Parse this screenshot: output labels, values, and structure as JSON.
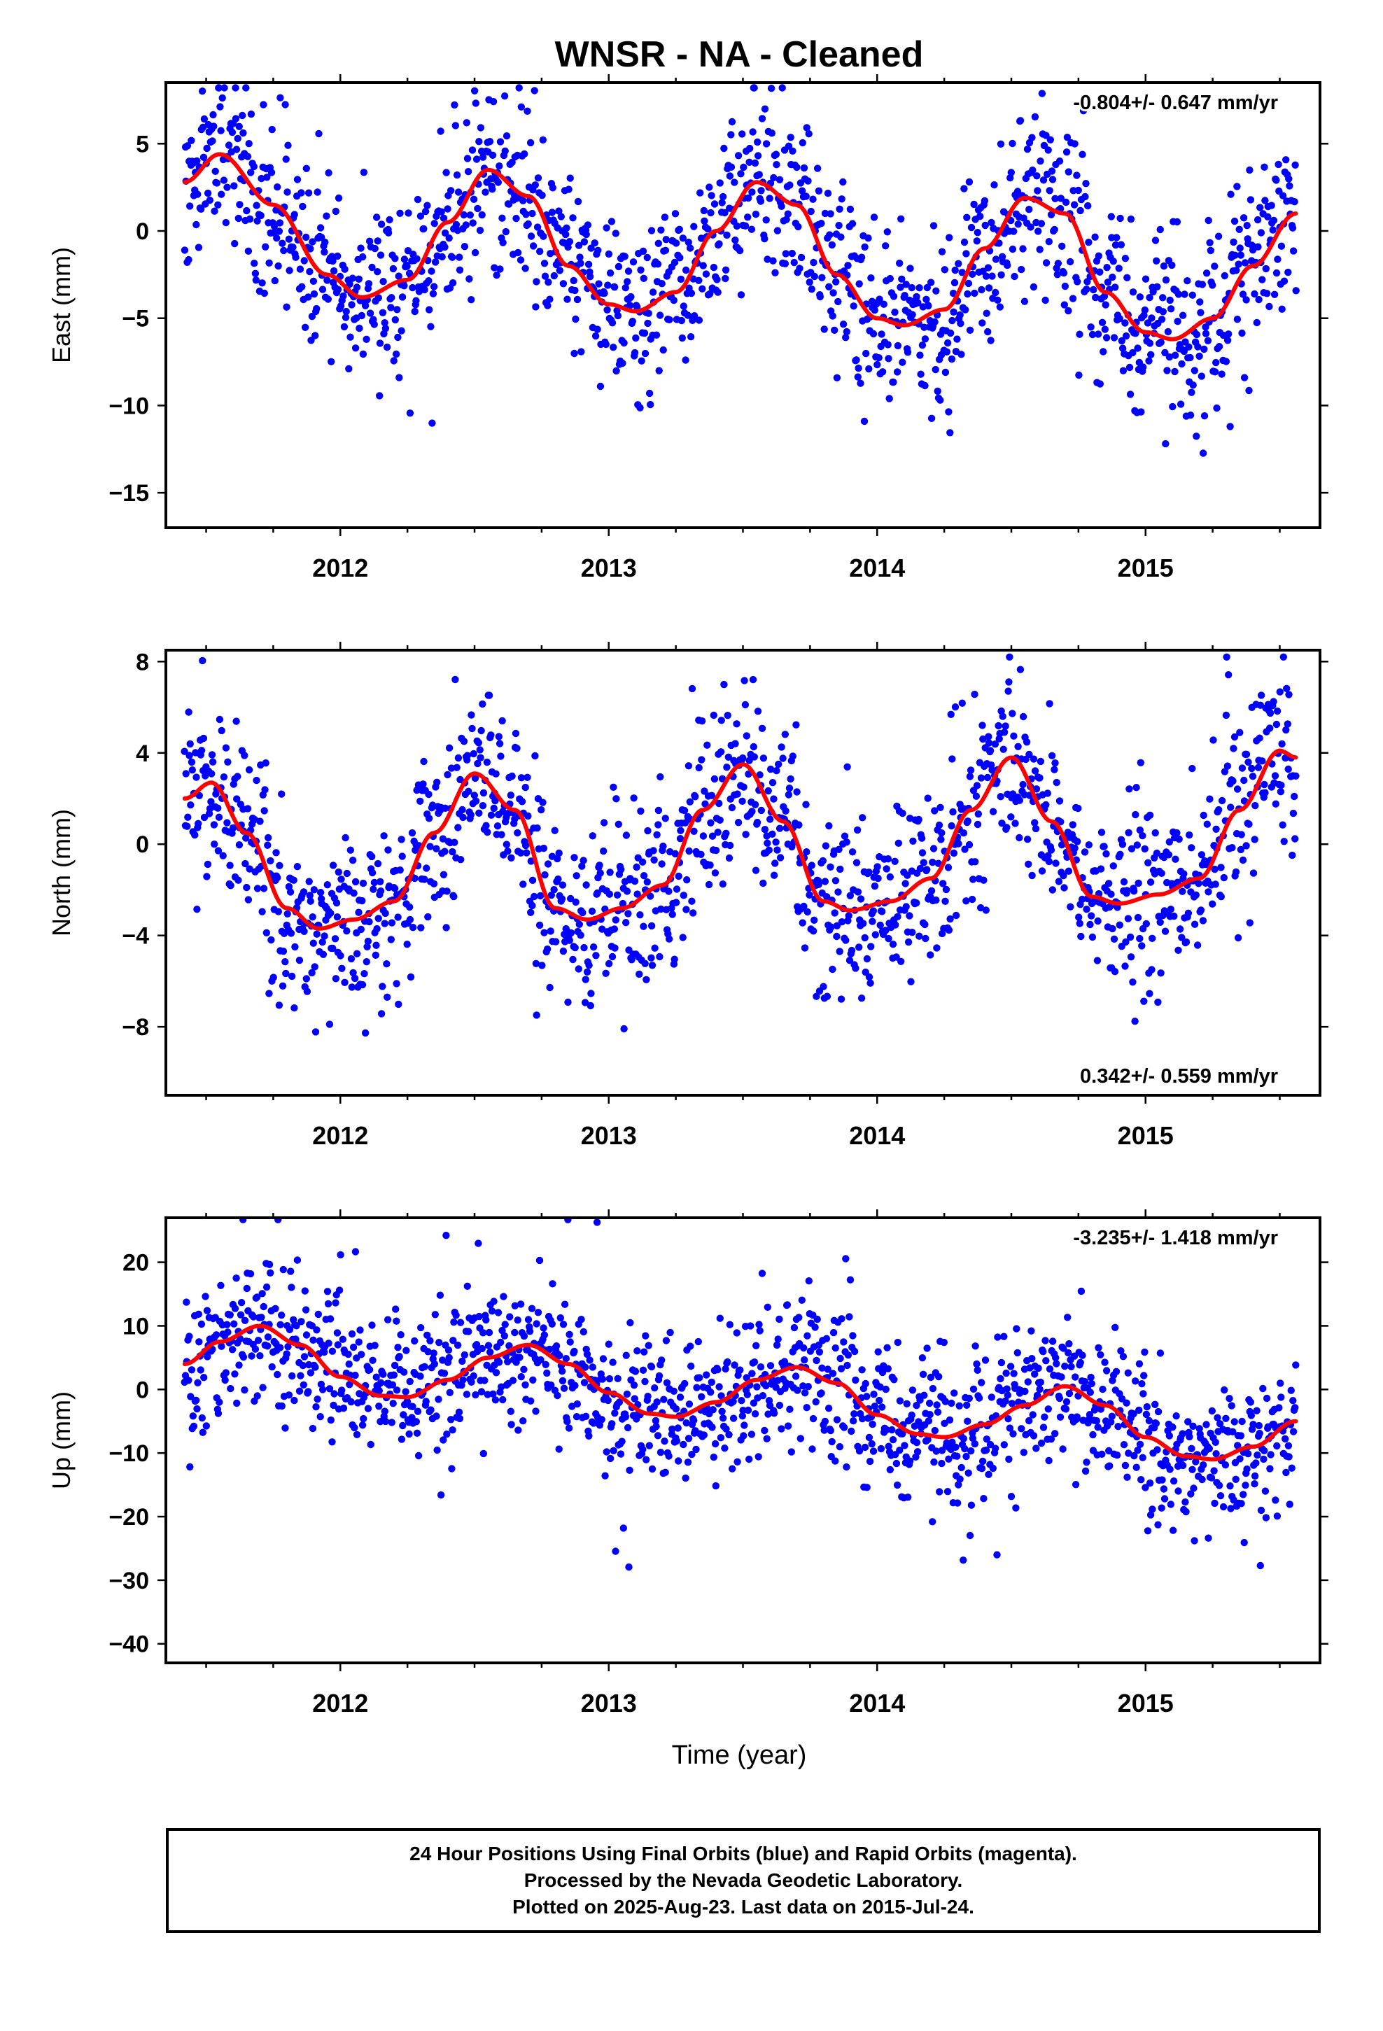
{
  "title": "WNSR  - NA - Cleaned",
  "footer": {
    "line1": "24 Hour Positions Using Final Orbits (blue) and Rapid Orbits (magenta).",
    "line2": "Processed by the Nevada Geodetic Laboratory.",
    "line3": "Plotted on 2025-Aug-23. Last data on 2015-Jul-24."
  },
  "colors": {
    "points": "#0000ff",
    "fit": "#ff0000",
    "frame": "#000000"
  },
  "chart_data": [
    {
      "type": "scatter",
      "ylabel": "East (mm)",
      "xlabel": "",
      "rate_label": "-0.804+/- 0.647 mm/yr",
      "rate_position": "top-right",
      "xlim": [
        2011.35,
        2015.65
      ],
      "ylim": [
        -17,
        8.5
      ],
      "xticks": [
        2012,
        2013,
        2014,
        2015
      ],
      "yticks": [
        5,
        0,
        -5,
        -10,
        -15
      ],
      "ytick_labels": [
        "5",
        "0",
        "−5",
        "−10",
        "−15"
      ],
      "x_start": 2011.42,
      "x_end": 2015.56,
      "fit": {
        "x": [
          2011.42,
          2011.55,
          2011.75,
          2011.95,
          2012.08,
          2012.25,
          2012.4,
          2012.55,
          2012.7,
          2012.85,
          2013.0,
          2013.1,
          2013.25,
          2013.4,
          2013.55,
          2013.7,
          2013.85,
          2014.0,
          2014.1,
          2014.25,
          2014.4,
          2014.55,
          2014.7,
          2014.85,
          2015.0,
          2015.1,
          2015.25,
          2015.4,
          2015.56
        ],
        "y": [
          2.8,
          4.4,
          1.5,
          -2.5,
          -3.8,
          -2.8,
          0.5,
          3.5,
          2.0,
          -2.0,
          -4.2,
          -4.6,
          -3.5,
          0.0,
          2.8,
          1.5,
          -2.5,
          -5.0,
          -5.4,
          -4.5,
          -1.0,
          1.9,
          1.0,
          -3.5,
          -5.8,
          -6.2,
          -5.0,
          -2.0,
          1.0
        ]
      },
      "scatter_sd": 2.6,
      "outlier_low": -14,
      "outlier_high": 6
    },
    {
      "type": "scatter",
      "ylabel": "North (mm)",
      "xlabel": "",
      "rate_label": "0.342+/- 0.559 mm/yr",
      "rate_position": "bottom-right",
      "xlim": [
        2011.35,
        2015.65
      ],
      "ylim": [
        -11,
        8.5
      ],
      "xticks": [
        2012,
        2013,
        2014,
        2015
      ],
      "yticks": [
        8,
        4,
        0,
        -4,
        -8
      ],
      "ytick_labels": [
        "8",
        "4",
        "0",
        "−4",
        "−8"
      ],
      "x_start": 2011.42,
      "x_end": 2015.56,
      "fit": {
        "x": [
          2011.42,
          2011.52,
          2011.65,
          2011.8,
          2011.92,
          2012.05,
          2012.2,
          2012.35,
          2012.5,
          2012.65,
          2012.8,
          2012.92,
          2013.05,
          2013.2,
          2013.35,
          2013.5,
          2013.65,
          2013.8,
          2013.9,
          2014.05,
          2014.2,
          2014.35,
          2014.5,
          2014.65,
          2014.8,
          2014.9,
          2015.05,
          2015.2,
          2015.35,
          2015.5,
          2015.56
        ],
        "y": [
          2.0,
          2.7,
          0.5,
          -2.8,
          -3.7,
          -3.3,
          -2.5,
          0.5,
          3.1,
          1.5,
          -2.8,
          -3.3,
          -2.8,
          -1.8,
          1.5,
          3.5,
          1.0,
          -2.5,
          -2.9,
          -2.5,
          -1.5,
          1.5,
          3.8,
          1.0,
          -2.3,
          -2.6,
          -2.2,
          -1.5,
          1.5,
          4.1,
          3.8
        ]
      },
      "scatter_sd": 2.0,
      "outlier_low": -9,
      "outlier_high": 6
    },
    {
      "type": "scatter",
      "ylabel": "Up (mm)",
      "xlabel": "Time (year)",
      "rate_label": "-3.235+/- 1.418 mm/yr",
      "rate_position": "top-right",
      "xlim": [
        2011.35,
        2015.65
      ],
      "ylim": [
        -43,
        27
      ],
      "xticks": [
        2012,
        2013,
        2014,
        2015
      ],
      "yticks": [
        20,
        10,
        0,
        -10,
        -20,
        -30,
        -40
      ],
      "ytick_labels": [
        "20",
        "10",
        "0",
        "−10",
        "−20",
        "−30",
        "−40"
      ],
      "x_start": 2011.42,
      "x_end": 2015.56,
      "fit": {
        "x": [
          2011.42,
          2011.55,
          2011.7,
          2011.85,
          2012.0,
          2012.15,
          2012.25,
          2012.4,
          2012.55,
          2012.7,
          2012.85,
          2013.0,
          2013.15,
          2013.25,
          2013.4,
          2013.55,
          2013.7,
          2013.85,
          2014.0,
          2014.15,
          2014.25,
          2014.4,
          2014.55,
          2014.7,
          2014.85,
          2015.0,
          2015.15,
          2015.25,
          2015.4,
          2015.56
        ],
        "y": [
          4.0,
          7.5,
          10.0,
          7.0,
          2.0,
          -1.0,
          -1.2,
          1.5,
          5.0,
          7.0,
          4.0,
          -0.5,
          -3.8,
          -4.3,
          -2.0,
          1.5,
          3.5,
          1.0,
          -4.0,
          -7.0,
          -7.5,
          -5.5,
          -2.5,
          0.5,
          -2.5,
          -7.5,
          -10.5,
          -11.0,
          -9.0,
          -5.0
        ]
      },
      "scatter_sd": 5.8,
      "outlier_low": -34,
      "outlier_high": 24
    }
  ]
}
